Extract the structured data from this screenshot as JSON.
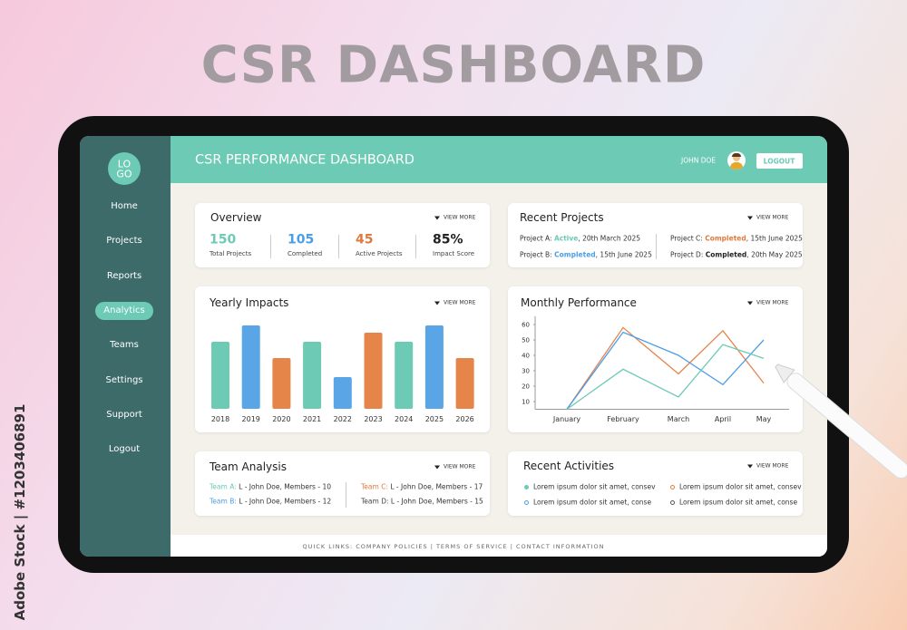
{
  "page_title": "CSR DASHBOARD",
  "watermark": "Adobe Stock | #1203406891",
  "sidebar": {
    "logo": [
      "LO",
      "GO"
    ],
    "nav": [
      {
        "label": "Home"
      },
      {
        "label": "Projects"
      },
      {
        "label": "Reports"
      },
      {
        "label": "Analytics",
        "active": true
      },
      {
        "label": "Teams"
      },
      {
        "label": "Settings"
      },
      {
        "label": "Support"
      },
      {
        "label": "Logout"
      }
    ]
  },
  "header": {
    "title": "CSR PERFORMANCE DASHBOARD",
    "user": "JOHN DOE",
    "logout": "LOGOUT"
  },
  "overview": {
    "title": "Overview",
    "view_more": "VIEW MORE",
    "stats": [
      {
        "value": "150",
        "label": "Total Projects",
        "color": "#6ccab5"
      },
      {
        "value": "105",
        "label": "Completed",
        "color": "#4a9ee6"
      },
      {
        "value": "45",
        "label": "Active Projects",
        "color": "#e07a3c"
      },
      {
        "value": "85%",
        "label": "Impact Score",
        "color": "#222222"
      }
    ]
  },
  "recent_projects": {
    "title": "Recent Projects",
    "view_more": "VIEW MORE",
    "items": [
      {
        "name": "Project A:",
        "status": "Active",
        "status_color": "#6ccab5",
        "date": ", 20th March 2025"
      },
      {
        "name": "Project B:",
        "status": "Completed",
        "status_color": "#4a9ee6",
        "date": ", 15th June 2025"
      },
      {
        "name": "Project C:",
        "status": "Completed",
        "status_color": "#e07a3c",
        "date": ", 15th June 2025"
      },
      {
        "name": "Project D:",
        "status": "Completed",
        "status_color": "#222222",
        "date": ", 20th May 2025"
      }
    ]
  },
  "yearly_impacts": {
    "title": "Yearly Impacts",
    "view_more": "VIEW MORE",
    "chart_data": {
      "type": "bar",
      "categories": [
        "2018",
        "2019",
        "2020",
        "2021",
        "2022",
        "2023",
        "2024",
        "2025",
        "2026"
      ],
      "values": [
        74,
        92,
        56,
        74,
        35,
        84,
        74,
        92,
        56
      ],
      "colors": [
        "#6ccab5",
        "#5aa5e6",
        "#e5854a",
        "#6ccab5",
        "#5aa5e6",
        "#e5854a",
        "#6ccab5",
        "#5aa5e6",
        "#e5854a"
      ]
    }
  },
  "monthly_performance": {
    "title": "Monthly Performance",
    "view_more": "VIEW MORE",
    "chart_data": {
      "type": "line",
      "categories": [
        "January",
        "February",
        "March",
        "April",
        "May"
      ],
      "series": [
        {
          "color": "#e5854a",
          "values": [
            5,
            58,
            28,
            56,
            22
          ]
        },
        {
          "color": "#4a9ee6",
          "values": [
            5,
            55,
            40,
            21,
            50
          ]
        },
        {
          "color": "#6ccab5",
          "values": [
            5,
            31,
            13,
            47,
            38
          ]
        }
      ],
      "ylim": [
        5,
        63
      ],
      "yticks": [
        10,
        20,
        30,
        40,
        50,
        60
      ]
    }
  },
  "team_analysis": {
    "title": "Team Analysis",
    "view_more": "VIEW MORE",
    "items": [
      {
        "team": "Team A:",
        "color": "#6ccab5",
        "detail": " L - John Doe, Members - 10"
      },
      {
        "team": "Team B:",
        "color": "#4a9ee6",
        "detail": " L - John Doe, Members - 12"
      },
      {
        "team": "Team C:",
        "color": "#e07a3c",
        "detail": " L - John Doe, Members - 17"
      },
      {
        "team": "Team D:",
        "color": "#444444",
        "detail": " L - John Doe, Members - 15"
      }
    ]
  },
  "recent_activities": {
    "title": "Recent Activities",
    "view_more": "VIEW MORE",
    "items": [
      {
        "text": "Lorem ipsum dolor sit amet, consev",
        "bullet_color": "#6ccab5",
        "hollow": false
      },
      {
        "text": "Lorem ipsum dolor sit amet, conse",
        "bullet_color": "#4a9ee6",
        "hollow": true
      },
      {
        "text": "Lorem ipsum dolor sit amet, consev",
        "bullet_color": "#e07a3c",
        "hollow": true
      },
      {
        "text": "Lorem ipsum dolor sit amet, conse",
        "bullet_color": "#555555",
        "hollow": true
      }
    ]
  },
  "footer": "QUICK LINKS: COMPANY POLICIES | TERMS OF SERVICE | CONTACT INFORMATION"
}
